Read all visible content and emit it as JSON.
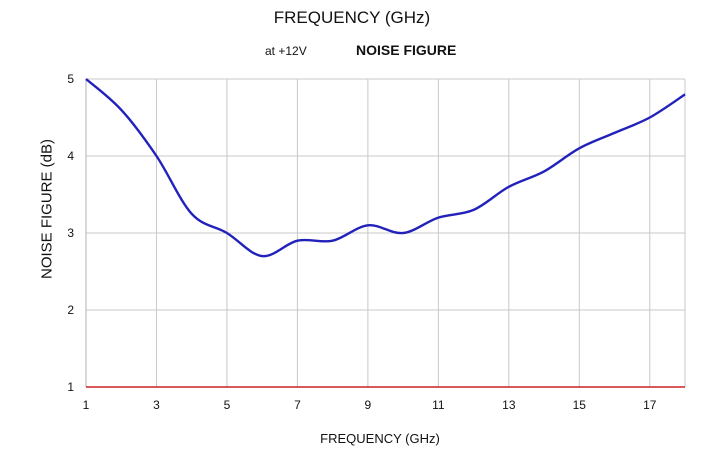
{
  "chart_data": {
    "type": "line",
    "top_title": "FREQUENCY (GHz)",
    "condition": "at +12V",
    "title": "NOISE FIGURE",
    "xlabel": "FREQUENCY (GHz)",
    "ylabel": "NOISE FIGURE (dB)",
    "xlim": [
      1,
      18
    ],
    "ylim": [
      1,
      5
    ],
    "x_ticks": [
      1,
      3,
      5,
      7,
      9,
      11,
      13,
      15,
      17
    ],
    "y_ticks": [
      1,
      2,
      3,
      4,
      5
    ],
    "grid": true,
    "series": [
      {
        "color": "#2222bb",
        "x": [
          1,
          2,
          3,
          4,
          5,
          6,
          7,
          8,
          9,
          10,
          11,
          12,
          13,
          14,
          15,
          16,
          17,
          18
        ],
        "y": [
          5.0,
          4.6,
          4.0,
          3.25,
          3.0,
          2.7,
          2.9,
          2.9,
          3.1,
          3.0,
          3.2,
          3.3,
          3.6,
          3.8,
          4.1,
          4.3,
          4.5,
          4.8
        ]
      }
    ],
    "baseline_color": "#cc2222"
  }
}
